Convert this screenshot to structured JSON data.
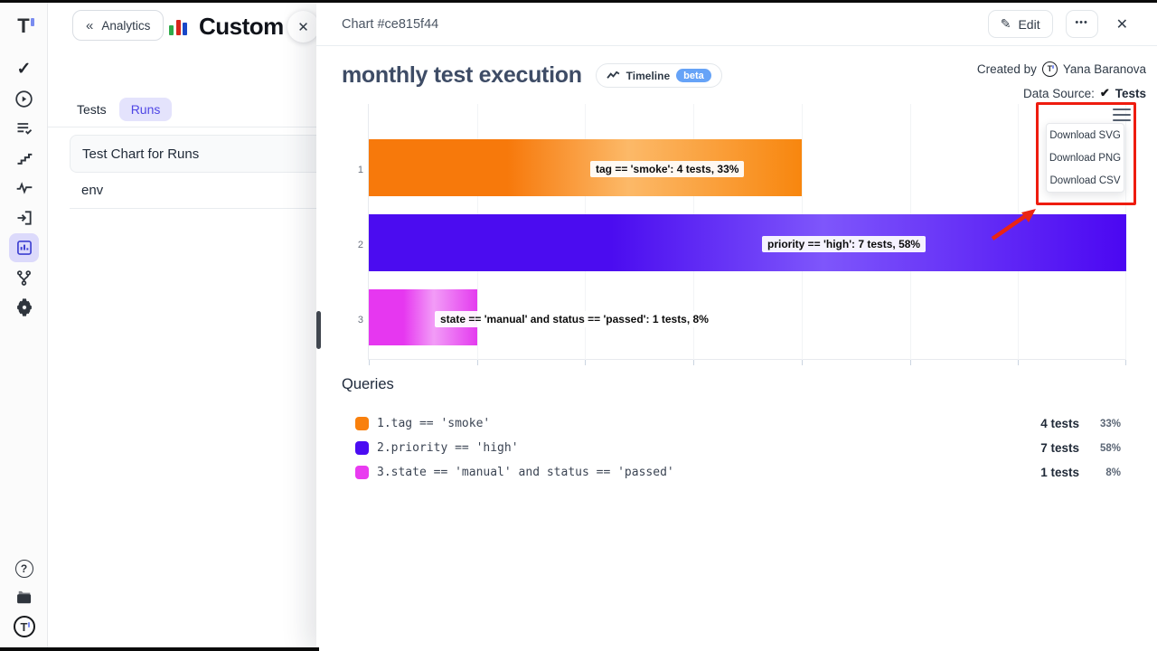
{
  "sidebar": {
    "icons": [
      "t-logo",
      "check",
      "play-circle",
      "run-list-check",
      "steps",
      "pulse",
      "import-run",
      "bar-chart-analytics",
      "git-branch",
      "gear-settings",
      "help-circle",
      "library",
      "t-logo-avatar"
    ],
    "selected": "bar-chart-analytics"
  },
  "drawer": {
    "back_label": "Analytics",
    "title": "Custom Ch",
    "tabs": [
      {
        "label": "Tests",
        "active": false
      },
      {
        "label": "Runs",
        "active": true
      }
    ],
    "items": [
      "Test Chart for Runs",
      "env"
    ]
  },
  "modal": {
    "header": {
      "title": "Chart #ce815f44",
      "edit_label": "Edit",
      "more_label": "•••"
    },
    "chart_header": {
      "title": "monthly test execution",
      "timeline_label": "Timeline",
      "beta_label": "beta",
      "created_by_label": "Created by",
      "created_by_name": "Yana Baranova",
      "data_source_label": "Data Source:",
      "data_source_value": "Tests"
    },
    "download_menu": {
      "items": [
        "Download SVG",
        "Download PNG",
        "Download CSV"
      ]
    },
    "queries": {
      "heading": "Queries",
      "rows": [
        {
          "index": "1.",
          "query": "tag == 'smoke'",
          "tests": "4 tests",
          "percent": "33%",
          "color": "#f9800d"
        },
        {
          "index": "2.",
          "query": "priority == 'high'",
          "tests": "7 tests",
          "percent": "58%",
          "color": "#4b0cf2"
        },
        {
          "index": "3.",
          "query": "state == 'manual' and status == 'passed'",
          "tests": "1 tests",
          "percent": "8%",
          "color": "#e93bf0"
        }
      ]
    }
  },
  "chart_data": {
    "type": "bar",
    "orientation": "horizontal",
    "title": "monthly test execution",
    "categories": [
      "1",
      "2",
      "3"
    ],
    "values": [
      4,
      7,
      1
    ],
    "percents": [
      33,
      58,
      8
    ],
    "bar_labels": [
      "tag == 'smoke': 4 tests, 33%",
      "priority == 'high': 7 tests, 58%",
      "state == 'manual' and status == 'passed': 1 tests, 8%"
    ],
    "colors": [
      [
        "#f7790b",
        "#fcb968",
        "#f8860e"
      ],
      [
        "#4b0cf0",
        "#7e56fb",
        "#4b07f2"
      ],
      [
        "#e637f0",
        "#f29cf7",
        "#e43bef"
      ]
    ],
    "xlim": [
      0,
      7
    ],
    "grid": true,
    "legend_position": "none"
  },
  "annotation": {
    "color": "#ee1c0f"
  }
}
